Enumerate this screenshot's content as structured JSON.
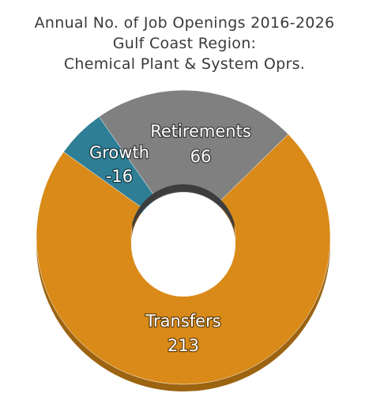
{
  "title_lines": [
    "Annual No. of Job Openings 2016-2026",
    "Gulf Coast Region:",
    "Chemical Plant & System Oprs."
  ],
  "chart_data": {
    "type": "pie",
    "variant": "donut",
    "title": "Annual No. of Job Openings 2016-2026 Gulf Coast Region: Chemical Plant & System Oprs.",
    "series": [
      {
        "name": "",
        "categories": [
          "Transfers",
          "Growth",
          "Retirements"
        ],
        "values": [
          213,
          -16,
          66
        ],
        "colors": [
          "#d98a18",
          "#2e7e96",
          "#808080"
        ]
      }
    ],
    "data_labels": [
      {
        "category": "Transfers",
        "label": "Transfers",
        "value": "213"
      },
      {
        "category": "Growth",
        "label": "Growth",
        "value": "-16"
      },
      {
        "category": "Retirements",
        "label": "Retirements",
        "value": "66"
      }
    ],
    "legend": "none",
    "background": "#ffffff"
  }
}
